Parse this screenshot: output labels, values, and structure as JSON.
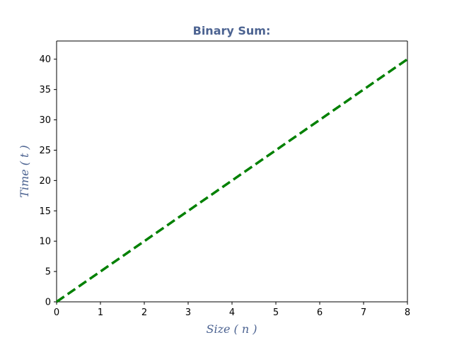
{
  "chart_data": {
    "type": "line",
    "title": "Binary Sum:",
    "xlabel": "Size ( n )",
    "ylabel": "Time ( t )",
    "xlim": [
      0,
      8
    ],
    "ylim": [
      0,
      43
    ],
    "x_ticks": [
      0,
      1,
      2,
      3,
      4,
      5,
      6,
      7,
      8
    ],
    "y_ticks": [
      0,
      5,
      10,
      15,
      20,
      25,
      30,
      35,
      40
    ],
    "grid": false,
    "series": [
      {
        "x": [
          0,
          1,
          2,
          3,
          4,
          5,
          6,
          7,
          8
        ],
        "y": [
          0,
          5,
          10,
          15,
          20,
          25,
          30,
          35,
          40
        ],
        "color": "#008000",
        "line_style": "dashed"
      }
    ]
  },
  "colors": {
    "title": "#4c6391",
    "axis_label": "#4c6391",
    "line": "#008000",
    "axes": "#000000"
  }
}
